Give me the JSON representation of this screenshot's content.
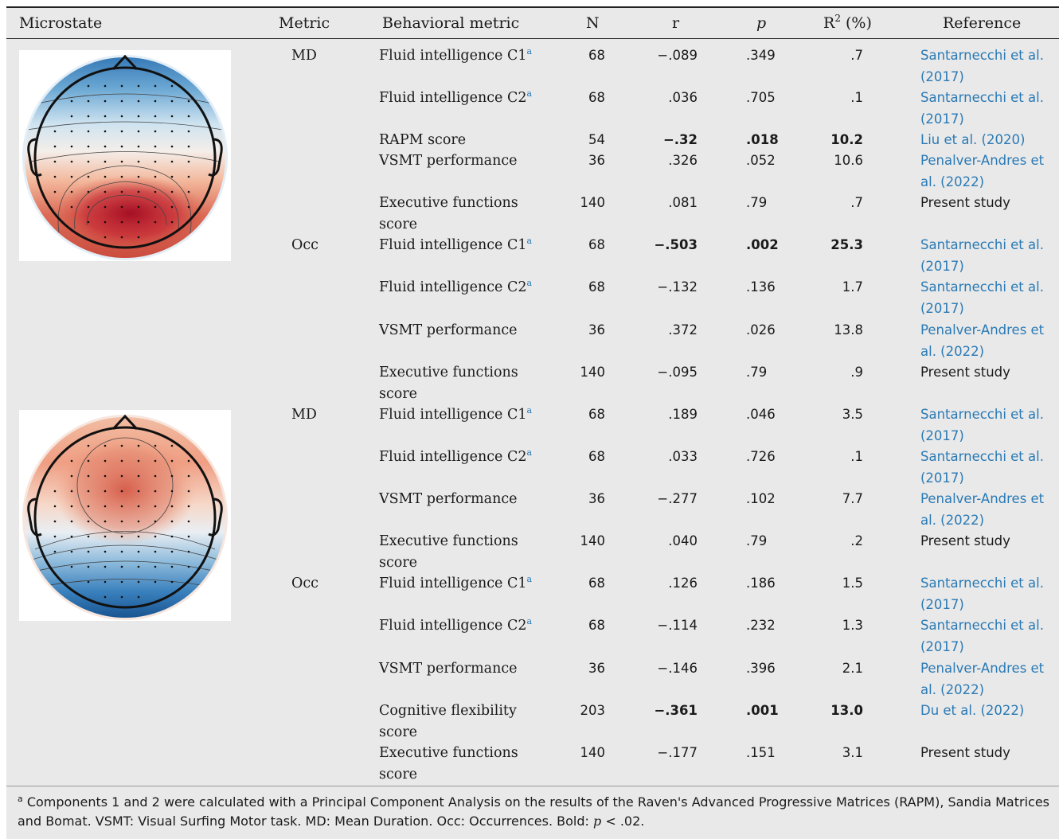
{
  "headers": {
    "microstate": "Microstate",
    "metric": "Metric",
    "behavioral": "Behavioral metric",
    "n": "N",
    "r": "r",
    "p": "p",
    "r2_base": "R",
    "r2_sup": "2",
    "r2_rest": " (%)",
    "reference": "Reference"
  },
  "metrics": {
    "md1": "MD",
    "occ1": "Occ",
    "md2": "MD",
    "occ2": "Occ"
  },
  "rows": [
    {
      "beh": "Fluid intelligence C1",
      "sup": "a",
      "n": "68",
      "r": "−.089",
      "p": ".349",
      "r2": ".7",
      "ref": "Santarnecchi et al. (2017)",
      "bold": false,
      "link": true
    },
    {
      "beh": "Fluid intelligence C2",
      "sup": "a",
      "n": "68",
      "r": ".036",
      "p": ".705",
      "r2": ".1",
      "ref": "Santarnecchi et al. (2017)",
      "bold": false,
      "link": true
    },
    {
      "beh": "RAPM score",
      "sup": "",
      "n": "54",
      "r": "−.32",
      "p": ".018",
      "r2": "10.2",
      "ref": "Liu et al. (2020)",
      "bold": true,
      "link": true
    },
    {
      "beh": "VSMT performance",
      "sup": "",
      "n": "36",
      "r": ".326",
      "p": ".052",
      "r2": "10.6",
      "ref": "Penalver-Andres et al. (2022)",
      "bold": false,
      "link": true
    },
    {
      "beh": "Executive functions score",
      "sup": "",
      "n": "140",
      "r": ".081",
      "p": ".79",
      "r2": ".7",
      "ref": "Present study",
      "bold": false,
      "link": false
    },
    {
      "beh": "Fluid intelligence C1",
      "sup": "a",
      "n": "68",
      "r": "−.503",
      "p": ".002",
      "r2": "25.3",
      "ref": "Santarnecchi et al. (2017)",
      "bold": true,
      "link": true
    },
    {
      "beh": "Fluid intelligence C2",
      "sup": "a",
      "n": "68",
      "r": "−.132",
      "p": ".136",
      "r2": "1.7",
      "ref": "Santarnecchi et al. (2017)",
      "bold": false,
      "link": true
    },
    {
      "beh": "VSMT performance",
      "sup": "",
      "n": "36",
      "r": ".372",
      "p": ".026",
      "r2": "13.8",
      "ref": "Penalver-Andres et al. (2022)",
      "bold": false,
      "link": true
    },
    {
      "beh": "Executive functions score",
      "sup": "",
      "n": "140",
      "r": "−.095",
      "p": ".79",
      "r2": ".9",
      "ref": "Present study",
      "bold": false,
      "link": false
    },
    {
      "beh": "Fluid intelligence C1",
      "sup": "a",
      "n": "68",
      "r": ".189",
      "p": ".046",
      "r2": "3.5",
      "ref": "Santarnecchi et al. (2017)",
      "bold": false,
      "link": true
    },
    {
      "beh": "Fluid intelligence C2",
      "sup": "a",
      "n": "68",
      "r": ".033",
      "p": ".726",
      "r2": ".1",
      "ref": "Santarnecchi et al. (2017)",
      "bold": false,
      "link": true
    },
    {
      "beh": "VSMT performance",
      "sup": "",
      "n": "36",
      "r": "−.277",
      "p": ".102",
      "r2": "7.7",
      "ref": "Penalver-Andres et al. (2022)",
      "bold": false,
      "link": true
    },
    {
      "beh": "Executive functions score",
      "sup": "",
      "n": "140",
      "r": ".040",
      "p": ".79",
      "r2": ".2",
      "ref": "Present study",
      "bold": false,
      "link": false
    },
    {
      "beh": "Fluid intelligence C1",
      "sup": "a",
      "n": "68",
      "r": ".126",
      "p": ".186",
      "r2": "1.5",
      "ref": "Santarnecchi et al. (2017)",
      "bold": false,
      "link": true
    },
    {
      "beh": "Fluid intelligence C2",
      "sup": "a",
      "n": "68",
      "r": "−.114",
      "p": ".232",
      "r2": "1.3",
      "ref": "Santarnecchi et al. (2017)",
      "bold": false,
      "link": true
    },
    {
      "beh": "VSMT performance",
      "sup": "",
      "n": "36",
      "r": "−.146",
      "p": ".396",
      "r2": "2.1",
      "ref": "Penalver-Andres et al. (2022)",
      "bold": false,
      "link": true
    },
    {
      "beh": "Cognitive flexibility score",
      "sup": "",
      "n": "203",
      "r": "−.361",
      "p": ".001",
      "r2": "13.0",
      "ref": "Du et al. (2022)",
      "bold": true,
      "link": true
    },
    {
      "beh": "Executive functions score",
      "sup": "",
      "n": "140",
      "r": "−.177",
      "p": ".151",
      "r2": "3.1",
      "ref": "Present study",
      "bold": false,
      "link": false
    }
  ],
  "footnote": {
    "marker": "a",
    "text": " Components 1 and 2 were calculated with a Principal Component Analysis on the results of the Raven's Advanced Progressive Matrices (RAPM), Sandia Matrices and Bomat. VSMT: Visual Surfing Motor task. MD: Mean Duration. Occ: Occurrences. Bold: ",
    "p_symbol": "p",
    "tail": " < .02."
  },
  "colors": {
    "link": "#2a7ab5",
    "panel": "#e9e9e9",
    "red": "#b2182b",
    "blue": "#2166ac"
  }
}
